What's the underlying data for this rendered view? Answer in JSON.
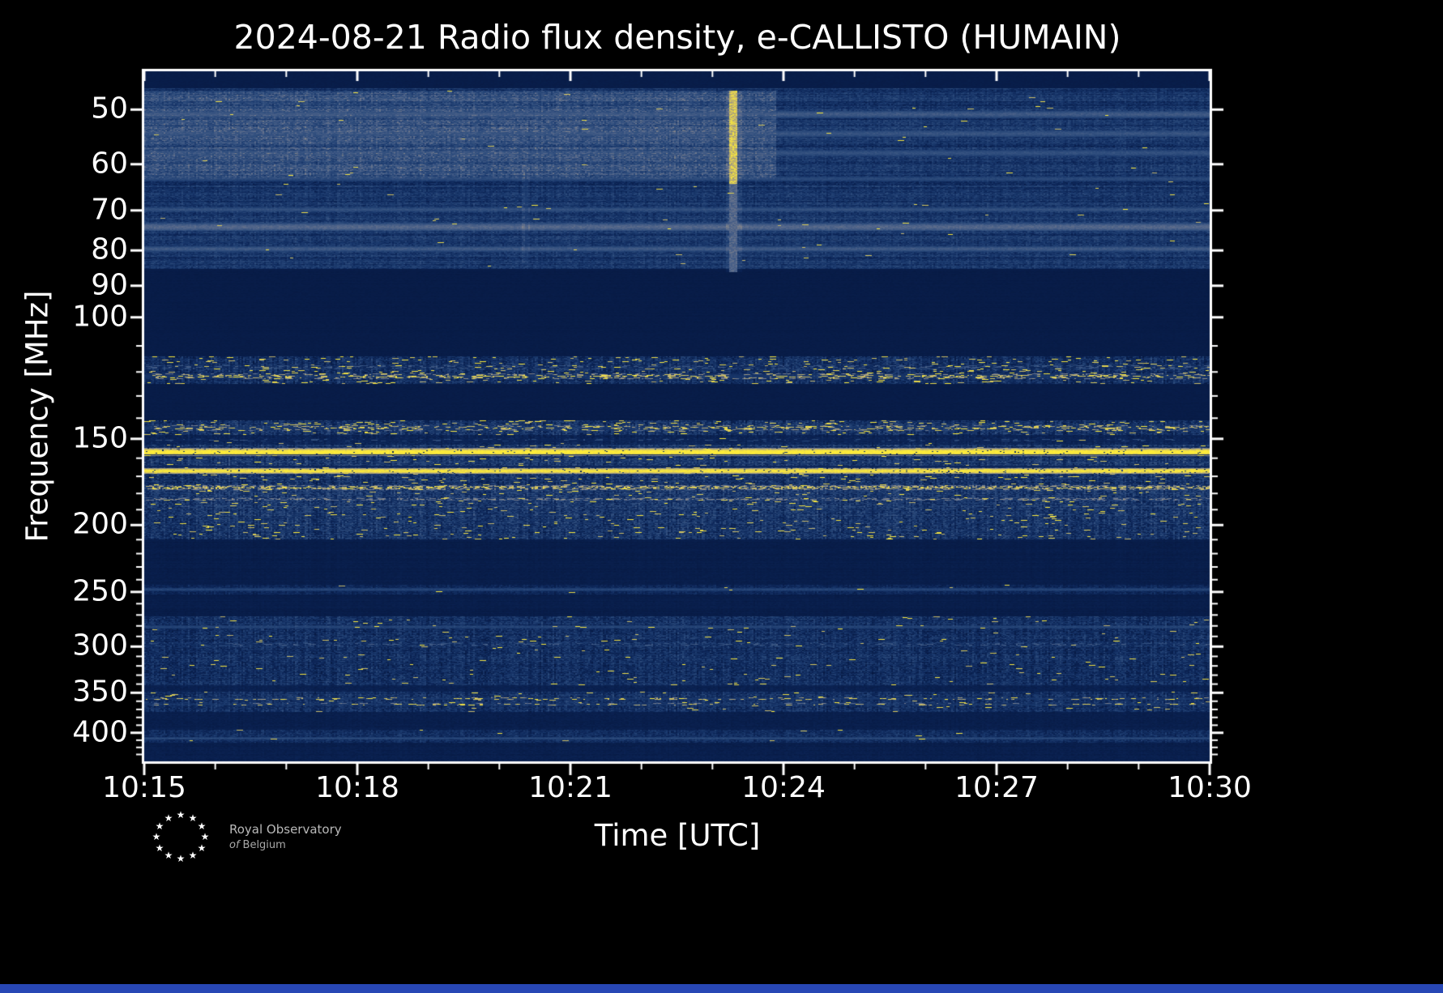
{
  "page": {
    "background": "#000000",
    "bottom_bar_color": "#2847b5"
  },
  "logo": {
    "name": "Royal Observatory of Belgium",
    "line1": "Royal Observatory",
    "line2_prefix": "of",
    "line2": "Belgium"
  },
  "chart_data": {
    "type": "heatmap",
    "subtype": "solar-radio-dynamic-spectrum",
    "instrument": "e-CALLISTO",
    "station": "HUMAIN",
    "date": "2024-08-21",
    "title": "2024-08-21 Radio flux density, e-CALLISTO (HUMAIN)",
    "xlabel": "Time [UTC]",
    "ylabel": "Frequency [MHz]",
    "x_ticks": [
      {
        "label": "10:15",
        "minute": 0
      },
      {
        "label": "10:18",
        "minute": 3
      },
      {
        "label": "10:21",
        "minute": 6
      },
      {
        "label": "10:24",
        "minute": 9
      },
      {
        "label": "10:27",
        "minute": 12
      },
      {
        "label": "10:30",
        "minute": 15
      }
    ],
    "x_minor_minutes": [
      1,
      2,
      4,
      5,
      7,
      8,
      10,
      11,
      13,
      14
    ],
    "x_range_minutes": [
      0,
      15
    ],
    "y_scale": "log",
    "y_axis_inverted_low_freq_on_top": true,
    "y_major_ticks": [
      50,
      60,
      70,
      80,
      90,
      100,
      150,
      200,
      250,
      300,
      350,
      400
    ],
    "y_minor_ticks": [
      110,
      120,
      130,
      140,
      160,
      170,
      180,
      190,
      210,
      220,
      230,
      240,
      260,
      270,
      280,
      290,
      310,
      320,
      330,
      340,
      360,
      370,
      380,
      390,
      410,
      420,
      430
    ],
    "y_range_mhz": [
      44,
      440
    ],
    "colormap_stops": [
      [
        0.0,
        "#061840"
      ],
      [
        0.18,
        "#0c2557"
      ],
      [
        0.35,
        "#1b3a6e"
      ],
      [
        0.5,
        "#32507f"
      ],
      [
        0.62,
        "#54678b"
      ],
      [
        0.72,
        "#80838b"
      ],
      [
        0.8,
        "#a89f7e"
      ],
      [
        0.88,
        "#d4c45f"
      ],
      [
        0.94,
        "#efdf45"
      ],
      [
        1.0,
        "#ffee38"
      ]
    ],
    "bands": [
      {
        "f1": 44.0,
        "f2": 46.6,
        "base": 0.07,
        "noise": 0.02,
        "row_var": 0.0,
        "col_var": 0.0,
        "speck": 0
      },
      {
        "f1": 46.6,
        "f2": 85.0,
        "base": 0.3,
        "noise": 0.11,
        "row_var": 0.09,
        "col_var": 0.04,
        "speck": 0.0006
      },
      {
        "f1": 85.0,
        "f2": 114.0,
        "base": 0.06,
        "noise": 0.02,
        "row_var": 0.01,
        "col_var": 0.0,
        "speck": 0
      },
      {
        "f1": 114.0,
        "f2": 125.0,
        "base": 0.24,
        "noise": 0.16,
        "row_var": 0.05,
        "col_var": 0.1,
        "speck": 0.02
      },
      {
        "f1": 125.0,
        "f2": 141.0,
        "base": 0.06,
        "noise": 0.02,
        "row_var": 0.01,
        "col_var": 0.0,
        "speck": 0
      },
      {
        "f1": 141.0,
        "f2": 148.0,
        "base": 0.28,
        "noise": 0.18,
        "row_var": 0.04,
        "col_var": 0.1,
        "speck": 0.025
      },
      {
        "f1": 148.0,
        "f2": 153.0,
        "base": 0.16,
        "noise": 0.08,
        "row_var": 0.03,
        "col_var": 0.04,
        "speck": 0.002
      },
      {
        "f1": 153.0,
        "f2": 210.0,
        "base": 0.3,
        "noise": 0.17,
        "row_var": 0.06,
        "col_var": 0.08,
        "speck": 0.01
      },
      {
        "f1": 210.0,
        "f2": 244.0,
        "base": 0.08,
        "noise": 0.03,
        "row_var": 0.02,
        "col_var": 0.01,
        "speck": 0
      },
      {
        "f1": 244.0,
        "f2": 252.0,
        "base": 0.2,
        "noise": 0.1,
        "row_var": 0.03,
        "col_var": 0.05,
        "speck": 0.001
      },
      {
        "f1": 252.0,
        "f2": 271.0,
        "base": 0.08,
        "noise": 0.03,
        "row_var": 0.02,
        "col_var": 0.01,
        "speck": 0
      },
      {
        "f1": 271.0,
        "f2": 341.0,
        "base": 0.26,
        "noise": 0.15,
        "row_var": 0.05,
        "col_var": 0.07,
        "speck": 0.004
      },
      {
        "f1": 341.0,
        "f2": 349.0,
        "base": 0.12,
        "noise": 0.05,
        "row_var": 0.02,
        "col_var": 0.02,
        "speck": 0
      },
      {
        "f1": 349.0,
        "f2": 373.0,
        "base": 0.26,
        "noise": 0.15,
        "row_var": 0.04,
        "col_var": 0.08,
        "speck": 0.005
      },
      {
        "f1": 373.0,
        "f2": 396.0,
        "base": 0.1,
        "noise": 0.04,
        "row_var": 0.02,
        "col_var": 0.01,
        "speck": 0
      },
      {
        "f1": 396.0,
        "f2": 414.0,
        "base": 0.24,
        "noise": 0.12,
        "row_var": 0.04,
        "col_var": 0.05,
        "speck": 0.001
      },
      {
        "f1": 414.0,
        "f2": 440.0,
        "base": 0.1,
        "noise": 0.04,
        "row_var": 0.02,
        "col_var": 0.01,
        "speck": 0
      }
    ],
    "rfi_lines": [
      {
        "f": 50.8,
        "half_mhz": 0.6,
        "level": 0.55
      },
      {
        "f": 54.2,
        "half_mhz": 0.6,
        "level": 0.52
      },
      {
        "f": 57.8,
        "half_mhz": 0.6,
        "level": 0.5
      },
      {
        "f": 63.0,
        "half_mhz": 0.5,
        "level": 0.45
      },
      {
        "f": 69.8,
        "half_mhz": 0.5,
        "level": 0.5
      },
      {
        "f": 74.0,
        "half_mhz": 1.0,
        "level": 0.62
      },
      {
        "f": 79.6,
        "half_mhz": 0.7,
        "level": 0.55
      },
      {
        "f": 118.0,
        "half_mhz": 1.0,
        "level": 0.55,
        "speck": 0.1
      },
      {
        "f": 121.8,
        "half_mhz": 1.2,
        "level": 0.88,
        "speck": 0.12
      },
      {
        "f": 144.6,
        "half_mhz": 1.3,
        "level": 0.88,
        "speck": 0.1
      },
      {
        "f": 150.6,
        "half_mhz": 0.6,
        "level": 0.5,
        "speck": 0.05
      },
      {
        "f": 156.8,
        "half_mhz": 2.0,
        "level": 1.0,
        "gap": 0.03
      },
      {
        "f": 158.3,
        "half_mhz": 0.25,
        "level": 0.22,
        "dark": true
      },
      {
        "f": 167.0,
        "half_mhz": 1.7,
        "level": 0.97,
        "gap": 0.04
      },
      {
        "f": 164.6,
        "half_mhz": 0.4,
        "level": 0.2,
        "dark": true
      },
      {
        "f": 176.5,
        "half_mhz": 1.4,
        "level": 0.88,
        "speck": 0.35
      },
      {
        "f": 183.5,
        "half_mhz": 1.0,
        "level": 0.72,
        "speck": 0.25
      },
      {
        "f": 188.0,
        "half_mhz": 0.8,
        "level": 0.5,
        "speck": 0.1
      },
      {
        "f": 248.0,
        "half_mhz": 1.2,
        "level": 0.42
      },
      {
        "f": 281.0,
        "half_mhz": 1.5,
        "level": 0.42
      },
      {
        "f": 298.0,
        "half_mhz": 1.8,
        "level": 0.55,
        "speck": 0.07
      },
      {
        "f": 357.0,
        "half_mhz": 1.6,
        "level": 0.92,
        "speck": 0.07
      },
      {
        "f": 364.0,
        "half_mhz": 1.4,
        "level": 0.9,
        "speck": 0.06
      },
      {
        "f": 407.5,
        "half_mhz": 1.5,
        "level": 0.46
      }
    ],
    "bursts": [
      {
        "minute": 8.3,
        "f1": 47,
        "f2": 86,
        "width_min": 0.11,
        "peak": 0.97,
        "core_f_max": 64,
        "label": "bright radio burst ~10:23:20, 47-86 MHz"
      },
      {
        "minute": 5.38,
        "f1": 60,
        "f2": 84,
        "width_min": 0.06,
        "peak": 0.36,
        "core_f_max": 84,
        "label": "faint vertical streak ~10:20:23"
      }
    ],
    "haze_regions": [
      {
        "t0": 0,
        "t1": 8.9,
        "f1": 47,
        "f2": 63,
        "add": 0.18
      }
    ]
  }
}
